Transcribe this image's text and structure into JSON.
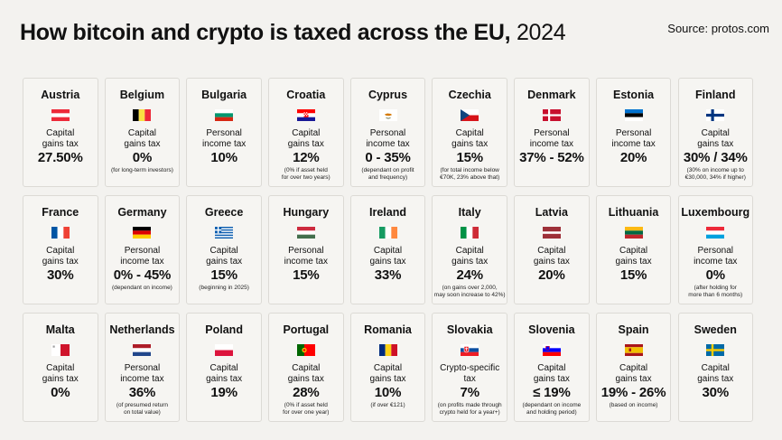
{
  "header": {
    "title": "How bitcoin and crypto is taxed across the EU,",
    "year": "2024",
    "source": "Source: protos.com"
  },
  "countries": [
    {
      "name": "Austria",
      "tax": "Capital\ngains tax",
      "rate": "27.50%",
      "note": "",
      "flag": "austria-flag-icon"
    },
    {
      "name": "Belgium",
      "tax": "Capital\ngains tax",
      "rate": "0%",
      "note": "(for long-term investors)",
      "flag": "belgium-flag-icon"
    },
    {
      "name": "Bulgaria",
      "tax": "Personal\nincome tax",
      "rate": "10%",
      "note": "",
      "flag": "bulgaria-flag-icon"
    },
    {
      "name": "Croatia",
      "tax": "Capital\ngains tax",
      "rate": "12%",
      "note": "(0% if asset held\nfor over two years)",
      "flag": "croatia-flag-icon"
    },
    {
      "name": "Cyprus",
      "tax": "Personal\nincome tax",
      "rate": "0 - 35%",
      "note": "(dependant on profit\nand frequency)",
      "flag": "cyprus-flag-icon"
    },
    {
      "name": "Czechia",
      "tax": "Capital\ngains tax",
      "rate": "15%",
      "note": "(for total income below\n€70K, 23% above that)",
      "flag": "czechia-flag-icon"
    },
    {
      "name": "Denmark",
      "tax": "Personal\nincome tax",
      "rate": "37% - 52%",
      "note": "",
      "flag": "denmark-flag-icon"
    },
    {
      "name": "Estonia",
      "tax": "Personal\nincome tax",
      "rate": "20%",
      "note": "",
      "flag": "estonia-flag-icon"
    },
    {
      "name": "Finland",
      "tax": "Capital\ngains tax",
      "rate": "30% / 34%",
      "note": "(30% on income up to\n€30,000, 34% if higher)",
      "flag": "finland-flag-icon"
    },
    {
      "name": "France",
      "tax": "Capital\ngains tax",
      "rate": "30%",
      "note": "",
      "flag": "france-flag-icon"
    },
    {
      "name": "Germany",
      "tax": "Personal\nincome tax",
      "rate": "0% - 45%",
      "note": "(dependant on income)",
      "flag": "germany-flag-icon"
    },
    {
      "name": "Greece",
      "tax": "Capital\ngains tax",
      "rate": "15%",
      "note": "(beginning in 2025)",
      "flag": "greece-flag-icon"
    },
    {
      "name": "Hungary",
      "tax": "Personal\nincome tax",
      "rate": "15%",
      "note": "",
      "flag": "hungary-flag-icon"
    },
    {
      "name": "Ireland",
      "tax": "Capital\ngains tax",
      "rate": "33%",
      "note": "",
      "flag": "ireland-flag-icon"
    },
    {
      "name": "Italy",
      "tax": "Capital\ngains tax",
      "rate": "24%",
      "note": "(on gains over 2,000,\nmay soon increase to 42%)",
      "flag": "italy-flag-icon"
    },
    {
      "name": "Latvia",
      "tax": "Capital\ngains tax",
      "rate": "20%",
      "note": "",
      "flag": "latvia-flag-icon"
    },
    {
      "name": "Lithuania",
      "tax": "Capital\ngains tax",
      "rate": "15%",
      "note": "",
      "flag": "lithuania-flag-icon"
    },
    {
      "name": "Luxembourg",
      "tax": "Personal\nincome tax",
      "rate": "0%",
      "note": "(after holding for\nmore than 6 months)",
      "flag": "luxembourg-flag-icon"
    },
    {
      "name": "Malta",
      "tax": "Capital\ngains tax",
      "rate": "0%",
      "note": "",
      "flag": "malta-flag-icon"
    },
    {
      "name": "Netherlands",
      "tax": "Personal\nincome tax",
      "rate": "36%",
      "note": "(of presumed return\non total value)",
      "flag": "netherlands-flag-icon"
    },
    {
      "name": "Poland",
      "tax": "Capital\ngains tax",
      "rate": "19%",
      "note": "",
      "flag": "poland-flag-icon"
    },
    {
      "name": "Portugal",
      "tax": "Capital\ngains tax",
      "rate": "28%",
      "note": "(0% if asset held\nfor over one year)",
      "flag": "portugal-flag-icon"
    },
    {
      "name": "Romania",
      "tax": "Capital\ngains tax",
      "rate": "10%",
      "note": "(if over €121)",
      "flag": "romania-flag-icon"
    },
    {
      "name": "Slovakia",
      "tax": "Crypto-specific\ntax",
      "rate": "7%",
      "note": "(on profits made through\ncrypto held for a year+)",
      "flag": "slovakia-flag-icon"
    },
    {
      "name": "Slovenia",
      "tax": "Capital\ngains tax",
      "rate": "≤ 19%",
      "note": "(dependant on income\nand holding period)",
      "flag": "slovenia-flag-icon"
    },
    {
      "name": "Spain",
      "tax": "Capital\ngains tax",
      "rate": "19% - 26%",
      "note": "(based on income)",
      "flag": "spain-flag-icon"
    },
    {
      "name": "Sweden",
      "tax": "Capital\ngains tax",
      "rate": "30%",
      "note": "",
      "flag": "sweden-flag-icon"
    }
  ]
}
